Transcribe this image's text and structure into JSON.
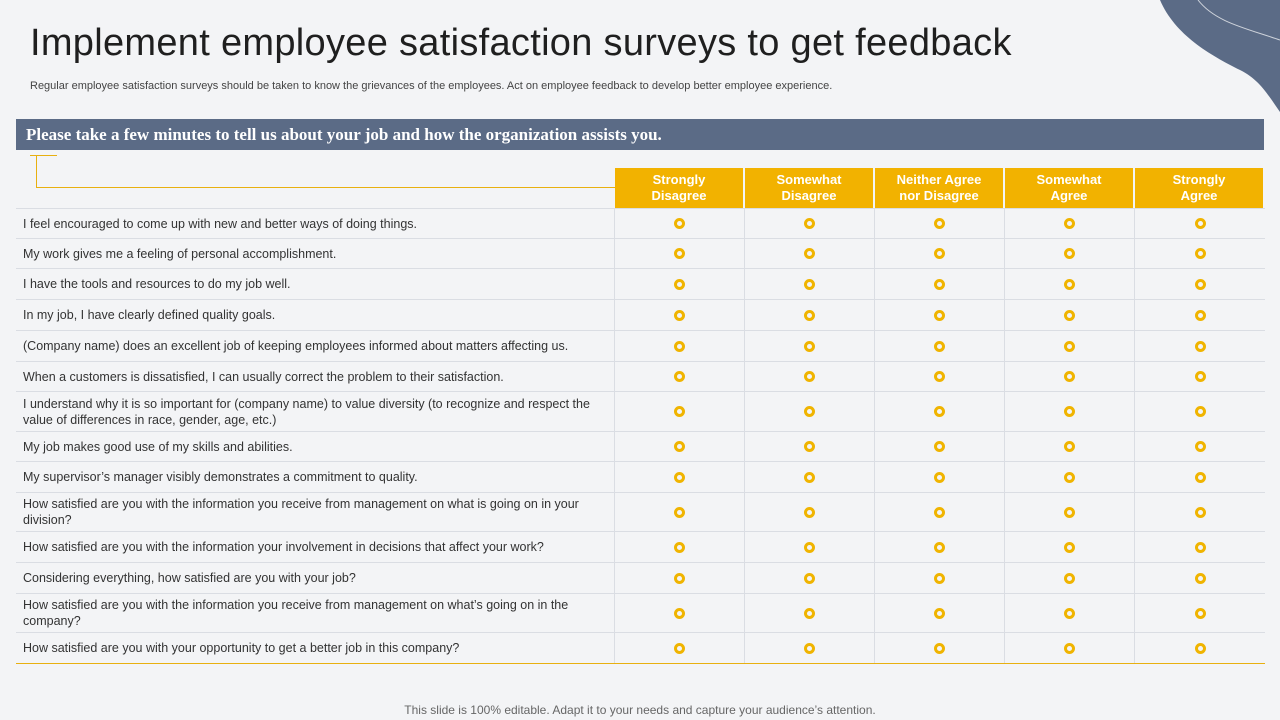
{
  "page": {
    "title": "Implement employee satisfaction surveys to get feedback",
    "subtitle": "Regular employee satisfaction surveys should be taken to know the grievances of the employees. Act on employee feedback to develop better employee experience.",
    "banner": "Please take a few minutes to tell us about your job and how the organization assists you.",
    "footer": "This slide is 100% editable. Adapt it to your needs and capture your audience’s attention."
  },
  "colors": {
    "accent": "#f2b200",
    "banner_bg": "#5b6b86",
    "background": "#f3f4f6"
  },
  "survey": {
    "columns": [
      "Strongly\nDisagree",
      "Somewhat\nDisagree",
      "Neither Agree\nnor Disagree",
      "Somewhat\nAgree",
      "Strongly\nAgree"
    ],
    "questions": [
      "I feel encouraged to come up with new and better ways of doing things.",
      "My work gives me a feeling of personal accomplishment.",
      "I have the tools and resources to do my job well.",
      "In my job, I have clearly defined quality goals.",
      "(Company name) does an excellent job of keeping employees informed about matters affecting us.",
      "When a customers is dissatisfied, I can usually correct the problem to their satisfaction.",
      "I understand why it is so important for (company name) to value diversity (to recognize and respect the value of differences in race, gender, age, etc.)",
      "My job makes good use of my skills and abilities.",
      "My supervisor’s manager visibly demonstrates a commitment to quality.",
      "How satisfied are you with the information you receive from management on what is going on in your division?",
      "How satisfied are you with the information your involvement in decisions that affect your work?",
      "Considering everything, how satisfied are you with your job?",
      "How satisfied are you with the information you receive from management on what’s going on in the company?",
      "How satisfied are you with your opportunity to get a better job in this company?"
    ]
  }
}
